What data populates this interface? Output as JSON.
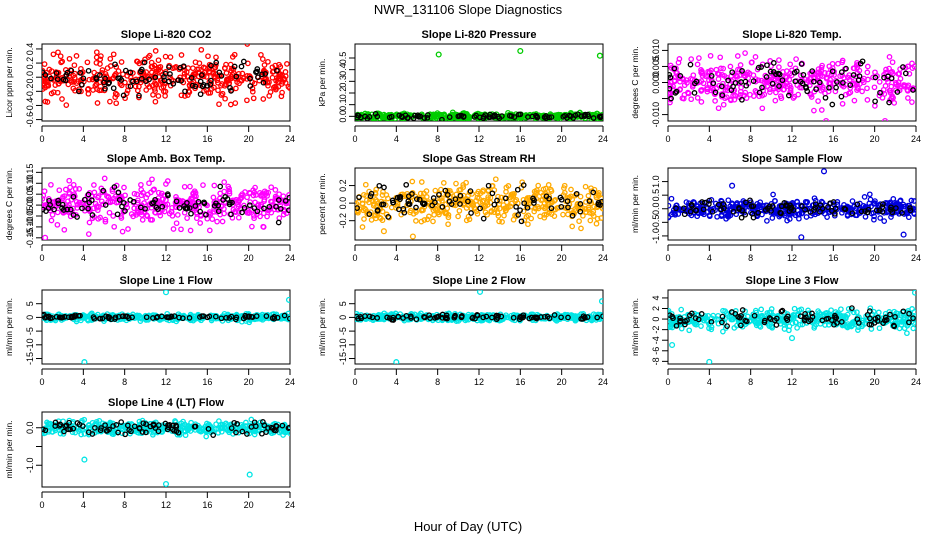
{
  "main_title": "NWR_131106  Slope Diagnostics",
  "xlabel": "Hour of Day (UTC)",
  "colors": {
    "red": "#ff0000",
    "green": "#00cc00",
    "magenta": "#ff00ff",
    "orange": "#ffaa00",
    "blue": "#0000dd",
    "cyan": "#00e5e5",
    "black": "#000000"
  },
  "chart_data": [
    {
      "type": "scatter",
      "title": "Slope Li-820 CO2",
      "ylabel": "Licor ppm per min.",
      "xlim": [
        0,
        24
      ],
      "xticks": [
        0,
        4,
        8,
        12,
        16,
        20,
        24
      ],
      "ylim": [
        -0.62,
        0.47
      ],
      "yticks": [
        -0.6,
        -0.4,
        -0.2,
        0.0,
        0.2,
        0.4
      ],
      "ytick_labels": [
        "-0.6",
        "-0.4",
        "-0.2",
        "0.0",
        "0.2",
        "0.4"
      ],
      "color": "red",
      "spread": 0.16,
      "black_spread": 0.12,
      "outliers": []
    },
    {
      "type": "scatter",
      "title": "Slope Li-820 Pressure",
      "ylabel": "kPa per min.",
      "xlim": [
        0,
        24
      ],
      "xticks": [
        0,
        4,
        8,
        12,
        16,
        20,
        24
      ],
      "ylim": [
        -0.04,
        0.62
      ],
      "yticks": [
        0.0,
        0.1,
        0.2,
        0.3,
        0.4,
        0.5
      ],
      "ytick_labels": [
        "0.0",
        "0.1",
        "0.2",
        "0.3",
        "0.4",
        "0.5"
      ],
      "color": "green",
      "spread": 0.012,
      "black_spread": 0.01,
      "outliers": [
        [
          8.1,
          0.53
        ],
        [
          16.0,
          0.56
        ],
        [
          23.7,
          0.52
        ]
      ]
    },
    {
      "type": "scatter",
      "title": "Slope Li-820 Temp.",
      "ylabel": "degrees C per min.",
      "xlim": [
        0,
        24
      ],
      "xticks": [
        0,
        4,
        8,
        12,
        16,
        20,
        24
      ],
      "ylim": [
        -0.012,
        0.012
      ],
      "yticks": [
        -0.01,
        -0.005,
        0.0,
        0.005,
        0.01
      ],
      "ytick_labels": [
        "-0.010",
        "",
        "0.000",
        "0.005",
        "0.010"
      ],
      "color": "magenta",
      "spread": 0.0035,
      "black_spread": 0.003,
      "outliers": [
        [
          15.3,
          -0.012
        ],
        [
          21.0,
          -0.012
        ]
      ]
    },
    {
      "type": "scatter",
      "title": "Slope Amb. Box Temp.",
      "ylabel": "degrees C per min.",
      "xlim": [
        0,
        24
      ],
      "xticks": [
        0,
        4,
        8,
        12,
        16,
        20,
        24
      ],
      "ylim": [
        -0.16,
        0.17
      ],
      "yticks": [
        -0.15,
        -0.1,
        -0.05,
        0.0,
        0.05,
        0.1,
        0.15
      ],
      "ytick_labels": [
        "-0.15",
        "-0.10",
        "-0.05",
        "0.00",
        "0.05",
        "0.10",
        "0.15"
      ],
      "color": "magenta",
      "spread": 0.045,
      "black_spread": 0.035,
      "outliers": [
        [
          0.3,
          -0.15
        ]
      ]
    },
    {
      "type": "scatter",
      "title": "Slope Gas Stream RH",
      "ylabel": "percent per min.",
      "xlim": [
        0,
        24
      ],
      "xticks": [
        0,
        4,
        8,
        12,
        16,
        20,
        24
      ],
      "ylim": [
        -0.42,
        0.4
      ],
      "yticks": [
        -0.2,
        0.0,
        0.2
      ],
      "ytick_labels": [
        "-0.2",
        "0.0",
        "0.2"
      ],
      "color": "orange",
      "spread": 0.11,
      "black_spread": 0.08,
      "outliers": [
        [
          2.8,
          -0.32
        ],
        [
          5.6,
          -0.38
        ]
      ]
    },
    {
      "type": "scatter",
      "title": "Slope Sample Flow",
      "ylabel": "ml/min per min.",
      "xlim": [
        0,
        24
      ],
      "xticks": [
        0,
        4,
        8,
        12,
        16,
        20,
        24
      ],
      "ylim": [
        -1.15,
        1.5
      ],
      "yticks": [
        -1.0,
        -0.5,
        0.0,
        0.5,
        1.0
      ],
      "ytick_labels": [
        "-1.0",
        "-0.5",
        "0.0",
        "0.5",
        "1.0"
      ],
      "color": "blue",
      "spread": 0.18,
      "black_spread": 0.15,
      "outliers": [
        [
          12.9,
          -1.05
        ],
        [
          15.1,
          1.38
        ],
        [
          6.2,
          0.85
        ],
        [
          22.8,
          -0.95
        ]
      ]
    },
    {
      "type": "scatter",
      "title": "Slope Line 1 Flow",
      "ylabel": "ml/min per min.",
      "xlim": [
        0,
        24
      ],
      "xticks": [
        0,
        4,
        8,
        12,
        16,
        20,
        24
      ],
      "ylim": [
        -17,
        10
      ],
      "yticks": [
        -15,
        -10,
        -5,
        0,
        5
      ],
      "ytick_labels": [
        "-15",
        "-10",
        "-5",
        "0",
        "5"
      ],
      "color": "cyan",
      "spread": 0.6,
      "black_spread": 0.4,
      "outliers": [
        [
          4.1,
          -16.3
        ],
        [
          12.0,
          9.2
        ],
        [
          23.9,
          6.4
        ]
      ]
    },
    {
      "type": "scatter",
      "title": "Slope Line 2 Flow",
      "ylabel": "ml/min per min.",
      "xlim": [
        0,
        24
      ],
      "xticks": [
        0,
        4,
        8,
        12,
        16,
        20,
        24
      ],
      "ylim": [
        -17,
        10
      ],
      "yticks": [
        -15,
        -10,
        -5,
        0,
        5
      ],
      "ytick_labels": [
        "-15",
        "-10",
        "-5",
        "0",
        "5"
      ],
      "color": "cyan",
      "spread": 0.6,
      "black_spread": 0.4,
      "outliers": [
        [
          4.0,
          -16.3
        ],
        [
          12.1,
          9.3
        ],
        [
          23.9,
          5.9
        ]
      ]
    },
    {
      "type": "scatter",
      "title": "Slope Line 3 Flow",
      "ylabel": "ml/min per min.",
      "xlim": [
        0,
        24
      ],
      "xticks": [
        0,
        4,
        8,
        12,
        16,
        20,
        24
      ],
      "ylim": [
        -8.5,
        5.5
      ],
      "yticks": [
        -8,
        -6,
        -4,
        -2,
        0,
        2,
        4
      ],
      "ytick_labels": [
        "-8",
        "-6",
        "-4",
        "-2",
        "0",
        "2",
        "4"
      ],
      "color": "cyan",
      "spread": 0.9,
      "black_spread": 0.7,
      "outliers": [
        [
          0.4,
          -4.9
        ],
        [
          4.0,
          -8.1
        ],
        [
          4.2,
          -1.5
        ],
        [
          23.9,
          5.0
        ],
        [
          12.0,
          -3.6
        ]
      ]
    },
    {
      "type": "scatter",
      "title": "Slope Line 4 (LT) Flow",
      "ylabel": "ml/min per min.",
      "xlim": [
        0,
        24
      ],
      "xticks": [
        0,
        4,
        8,
        12,
        16,
        20,
        24
      ],
      "ylim": [
        -1.58,
        0.42
      ],
      "yticks": [
        -1.0,
        -0.5,
        0.0
      ],
      "ytick_labels": [
        "-1.0",
        "",
        "0.0"
      ],
      "color": "cyan",
      "spread": 0.09,
      "black_spread": 0.08,
      "outliers": [
        [
          4.1,
          -0.85
        ],
        [
          12.0,
          -1.5
        ],
        [
          20.1,
          -1.25
        ]
      ]
    }
  ]
}
